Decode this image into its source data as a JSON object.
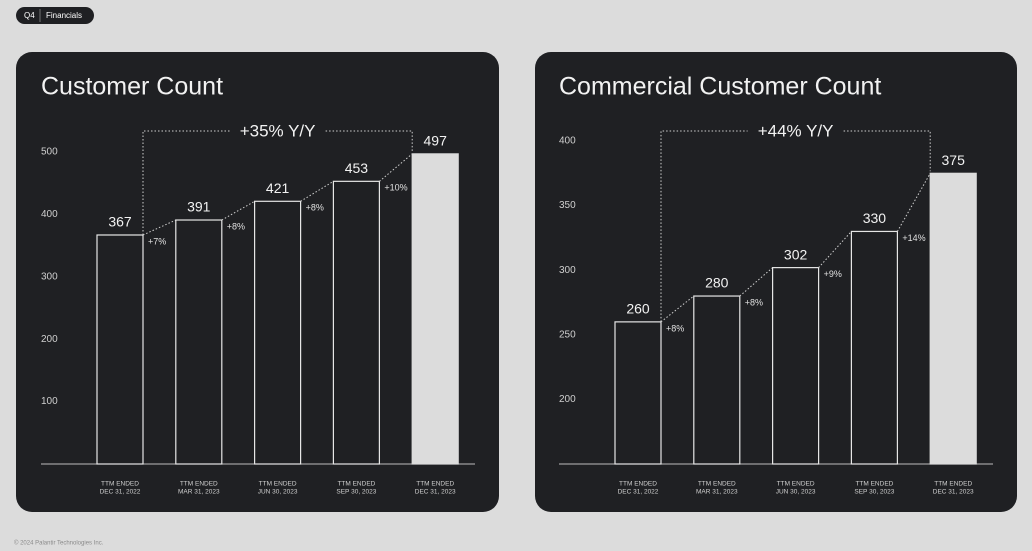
{
  "badge": {
    "quarter": "Q4",
    "section": "Financials"
  },
  "chart_data": [
    {
      "type": "bar",
      "title": "Customer Count",
      "categories": [
        [
          "TTM ENDED",
          "DEC 31, 2022"
        ],
        [
          "TTM ENDED",
          "MAR 31, 2023"
        ],
        [
          "TTM ENDED",
          "JUN 30, 2023"
        ],
        [
          "TTM ENDED",
          "SEP 30, 2023"
        ],
        [
          "TTM ENDED",
          "DEC 31, 2023"
        ]
      ],
      "values": [
        367,
        391,
        421,
        453,
        497
      ],
      "change_labels": [
        "+7%",
        "+8%",
        "+8%",
        "+10%"
      ],
      "total_change": "+35% Y/Y",
      "ylim": [
        0,
        500
      ],
      "yticks": [
        100,
        200,
        300,
        400,
        500
      ],
      "color": "#e6e6e6",
      "highlight_color": "#dcdcdc"
    },
    {
      "type": "bar",
      "title": "Commercial Customer Count",
      "categories": [
        [
          "TTM ENDED",
          "DEC 31, 2022"
        ],
        [
          "TTM ENDED",
          "MAR 31, 2023"
        ],
        [
          "TTM ENDED",
          "JUN 30, 2023"
        ],
        [
          "TTM ENDED",
          "SEP 30, 2023"
        ],
        [
          "TTM ENDED",
          "DEC 31, 2023"
        ]
      ],
      "values": [
        260,
        280,
        302,
        330,
        375
      ],
      "change_labels": [
        "+8%",
        "+8%",
        "+9%",
        "+14%"
      ],
      "total_change": "+44% Y/Y",
      "ylim": [
        150,
        400
      ],
      "yticks": [
        200,
        250,
        300,
        350,
        400
      ],
      "color": "#e6e6e6",
      "highlight_color": "#dcdcdc"
    }
  ],
  "footer": "© 2024 Palantir Technologies Inc."
}
